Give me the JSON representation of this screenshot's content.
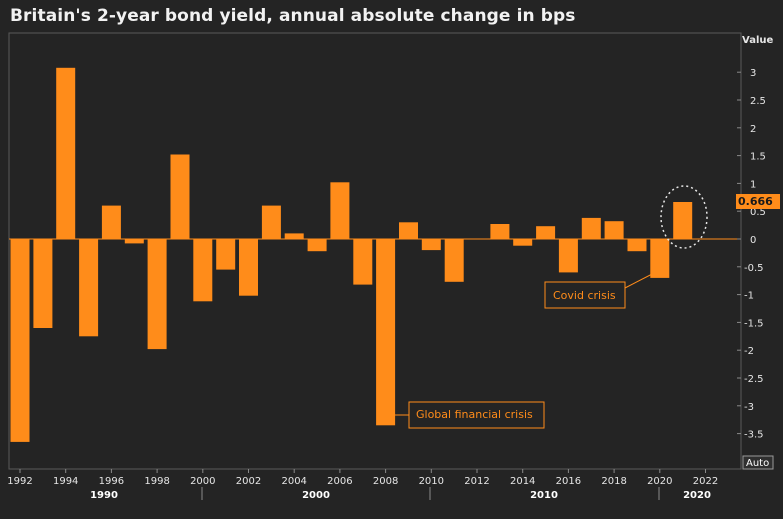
{
  "title": "Britain's 2-year bond yield, annual absolute change in bps",
  "y_axis_title": "Value",
  "auto_label": "Auto",
  "last_value_label": "0.666",
  "annotations": {
    "covid": "Covid crisis",
    "gfc": "Global financial crisis"
  },
  "colors": {
    "bar": "#ff8c1a",
    "background": "#242424",
    "plot_border": "#5a5a5a"
  },
  "chart_data": {
    "type": "bar",
    "title": "Britain's 2-year bond yield, annual absolute change in bps",
    "ylabel": "Value",
    "ylim": [
      -4.1,
      3.2
    ],
    "grid": false,
    "x_ticks": [
      "1992",
      "1994",
      "1996",
      "1998",
      "2000",
      "2002",
      "2004",
      "2006",
      "2008",
      "2010",
      "2012",
      "2014",
      "2016",
      "2018",
      "2020",
      "2022"
    ],
    "y_ticks": [
      "3",
      "2.5",
      "2",
      "1.5",
      "1",
      "0.5",
      "0",
      "-0.5",
      "-1",
      "-1.5",
      "-2",
      "-2.5",
      "-3",
      "-3.5"
    ],
    "decades": [
      "1990",
      "2000",
      "2010",
      "2020"
    ],
    "categories": [
      1992,
      1993,
      1994,
      1995,
      1996,
      1997,
      1998,
      1999,
      2000,
      2001,
      2002,
      2003,
      2004,
      2005,
      2006,
      2007,
      2008,
      2009,
      2010,
      2011,
      2012,
      2013,
      2014,
      2015,
      2016,
      2017,
      2018,
      2019,
      2020,
      2021
    ],
    "values": [
      -3.65,
      -1.6,
      3.08,
      -1.75,
      0.6,
      -0.08,
      -1.98,
      1.52,
      -1.12,
      -0.55,
      -1.02,
      0.6,
      0.1,
      -0.22,
      1.02,
      -0.82,
      -3.35,
      0.3,
      -0.2,
      -0.77,
      0.0,
      0.27,
      -0.12,
      0.23,
      -0.6,
      0.38,
      0.32,
      -0.22,
      -0.7,
      0.666
    ]
  }
}
